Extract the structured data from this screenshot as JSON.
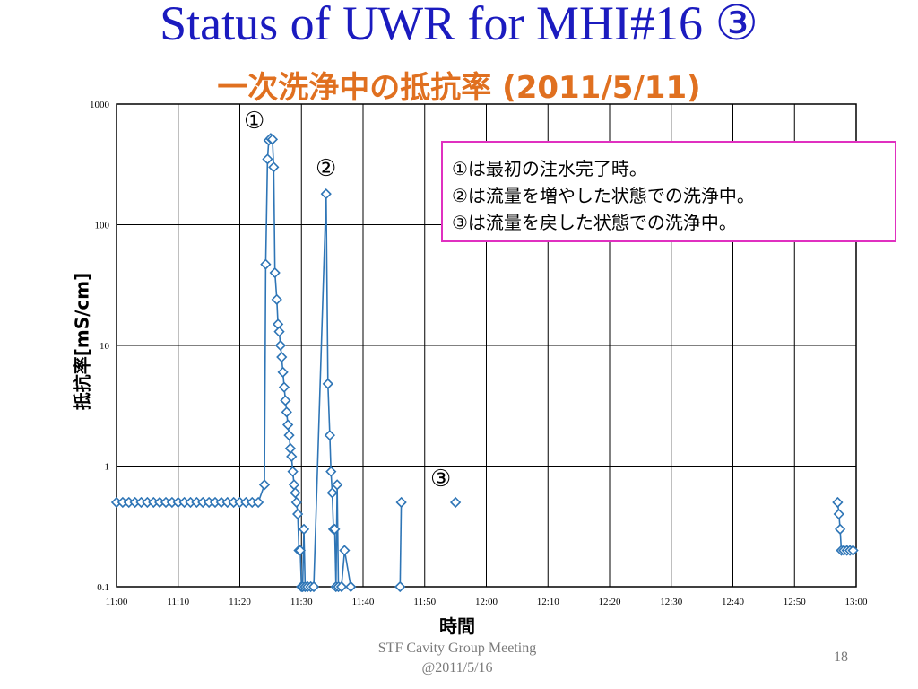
{
  "slide": {
    "title": "Status of UWR for MHI#16 ③",
    "subtitle": "一次洗浄中の抵抗率 (2011/5/11)",
    "footer_line1": "STF Cavity Group Meeting",
    "footer_line2": "@2011/5/16",
    "page_number": "18"
  },
  "note": {
    "lines": [
      "①は最初の注水完了時。",
      "②は流量を増やした状態での洗浄中。",
      "③は流量を戻した状態での洗浄中。"
    ],
    "border_color": "#e030c0"
  },
  "markers": {
    "m1": "①",
    "m2": "②",
    "m3": "③"
  },
  "colors": {
    "title": "#1b1bbf",
    "subtitle": "#e07020",
    "series": "#2e75b6"
  },
  "chart_data": {
    "type": "scatter",
    "xlabel": "時間",
    "ylabel": "抵抗率[mS/cm]",
    "x_ticks": [
      "11:00",
      "11:10",
      "11:20",
      "11:30",
      "11:40",
      "11:50",
      "12:00",
      "12:10",
      "12:20",
      "12:30",
      "12:40",
      "12:50",
      "13:00"
    ],
    "y_ticks": [
      "0.1",
      "1",
      "10",
      "100",
      "1000"
    ],
    "xlim": [
      "11:00",
      "13:00"
    ],
    "ylim": [
      0.1,
      1000
    ],
    "yscale": "log",
    "grid": true,
    "series": [
      {
        "points": [
          {
            "x": "11:00:00",
            "y": 0.5
          },
          {
            "x": "11:01:00",
            "y": 0.5
          },
          {
            "x": "11:02:00",
            "y": 0.5
          },
          {
            "x": "11:03:00",
            "y": 0.5
          },
          {
            "x": "11:04:00",
            "y": 0.5
          },
          {
            "x": "11:05:00",
            "y": 0.5
          },
          {
            "x": "11:06:00",
            "y": 0.5
          },
          {
            "x": "11:07:00",
            "y": 0.5
          },
          {
            "x": "11:08:00",
            "y": 0.5
          },
          {
            "x": "11:09:00",
            "y": 0.5
          },
          {
            "x": "11:10:00",
            "y": 0.5
          },
          {
            "x": "11:11:00",
            "y": 0.5
          },
          {
            "x": "11:12:00",
            "y": 0.5
          },
          {
            "x": "11:13:00",
            "y": 0.5
          },
          {
            "x": "11:14:00",
            "y": 0.5
          },
          {
            "x": "11:15:00",
            "y": 0.5
          },
          {
            "x": "11:16:00",
            "y": 0.5
          },
          {
            "x": "11:17:00",
            "y": 0.5
          },
          {
            "x": "11:18:00",
            "y": 0.5
          },
          {
            "x": "11:19:00",
            "y": 0.5
          },
          {
            "x": "11:20:00",
            "y": 0.5
          },
          {
            "x": "11:21:00",
            "y": 0.5
          },
          {
            "x": "11:22:00",
            "y": 0.5
          },
          {
            "x": "11:23:00",
            "y": 0.5
          },
          {
            "x": "11:24:00",
            "y": 0.7
          },
          {
            "x": "11:24:12",
            "y": 47
          },
          {
            "x": "11:24:30",
            "y": 350
          },
          {
            "x": "11:24:42",
            "y": 500
          },
          {
            "x": "11:25:00",
            "y": 520
          },
          {
            "x": "11:25:18",
            "y": 510
          },
          {
            "x": "11:25:30",
            "y": 300
          },
          {
            "x": "11:25:42",
            "y": 40
          },
          {
            "x": "11:26:00",
            "y": 24
          },
          {
            "x": "11:26:12",
            "y": 15
          },
          {
            "x": "11:26:24",
            "y": 13
          },
          {
            "x": "11:26:36",
            "y": 10
          },
          {
            "x": "11:26:48",
            "y": 8
          },
          {
            "x": "11:27:00",
            "y": 6
          },
          {
            "x": "11:27:12",
            "y": 4.5
          },
          {
            "x": "11:27:24",
            "y": 3.5
          },
          {
            "x": "11:27:36",
            "y": 2.8
          },
          {
            "x": "11:27:48",
            "y": 2.2
          },
          {
            "x": "11:28:00",
            "y": 1.8
          },
          {
            "x": "11:28:12",
            "y": 1.4
          },
          {
            "x": "11:28:24",
            "y": 1.2
          },
          {
            "x": "11:28:36",
            "y": 0.9
          },
          {
            "x": "11:28:48",
            "y": 0.7
          },
          {
            "x": "11:29:00",
            "y": 0.6
          },
          {
            "x": "11:29:12",
            "y": 0.5
          },
          {
            "x": "11:29:24",
            "y": 0.4
          },
          {
            "x": "11:29:36",
            "y": 0.2
          },
          {
            "x": "11:29:48",
            "y": 0.2
          },
          {
            "x": "11:30:00",
            "y": 0.1
          },
          {
            "x": "11:30:12",
            "y": 0.1
          },
          {
            "x": "11:30:24",
            "y": 0.3
          },
          {
            "x": "11:30:36",
            "y": 0.1
          },
          {
            "x": "11:31:00",
            "y": 0.1
          },
          {
            "x": "11:31:30",
            "y": 0.1
          },
          {
            "x": "11:32:00",
            "y": 0.1
          },
          {
            "x": "11:34:00",
            "y": 180
          },
          {
            "x": "11:34:18",
            "y": 4.8
          },
          {
            "x": "11:34:36",
            "y": 1.8
          },
          {
            "x": "11:34:48",
            "y": 0.9
          },
          {
            "x": "11:35:00",
            "y": 0.6
          },
          {
            "x": "11:35:12",
            "y": 0.3
          },
          {
            "x": "11:35:24",
            "y": 0.3
          },
          {
            "x": "11:35:36",
            "y": 0.1
          },
          {
            "x": "11:35:48",
            "y": 0.7
          },
          {
            "x": "11:36:00",
            "y": 0.1
          },
          {
            "x": "11:36:30",
            "y": 0.1
          },
          {
            "x": "11:37:00",
            "y": 0.2
          },
          {
            "x": "11:38:00",
            "y": 0.1
          },
          {
            "x": "11:46:00",
            "y": 0.1
          },
          {
            "x": "11:46:12",
            "y": 0.5
          },
          {
            "x": "11:55:00",
            "y": 0.5
          },
          {
            "x": "12:57:00",
            "y": 0.5
          },
          {
            "x": "12:57:12",
            "y": 0.4
          },
          {
            "x": "12:57:24",
            "y": 0.3
          },
          {
            "x": "12:57:36",
            "y": 0.2
          },
          {
            "x": "12:58:00",
            "y": 0.2
          },
          {
            "x": "12:58:30",
            "y": 0.2
          },
          {
            "x": "12:59:00",
            "y": 0.2
          },
          {
            "x": "12:59:30",
            "y": 0.2
          }
        ]
      }
    ]
  }
}
